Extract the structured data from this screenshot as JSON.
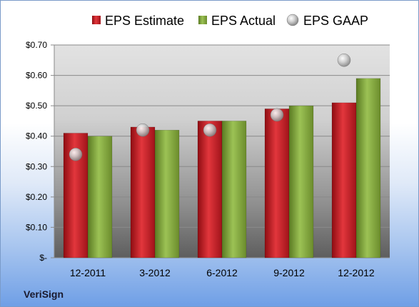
{
  "company": "VeriSign",
  "chart_data": {
    "type": "bar",
    "categories": [
      "12-2011",
      "3-2012",
      "6-2012",
      "9-2012",
      "12-2012"
    ],
    "series": [
      {
        "name": "EPS Estimate",
        "kind": "bar",
        "color": "#c0141c",
        "values": [
          0.41,
          0.43,
          0.45,
          0.49,
          0.51
        ]
      },
      {
        "name": "EPS Actual",
        "kind": "bar",
        "color": "#7fa03a",
        "values": [
          0.4,
          0.42,
          0.45,
          0.5,
          0.59
        ]
      },
      {
        "name": "EPS GAAP",
        "kind": "scatter",
        "color": "#b8b8b8",
        "values": [
          0.34,
          0.42,
          0.42,
          0.47,
          0.65
        ]
      }
    ],
    "yticks": [
      "$-",
      "$0.10",
      "$0.20",
      "$0.30",
      "$0.40",
      "$0.50",
      "$0.60",
      "$0.70"
    ],
    "ylim": [
      0,
      0.7
    ],
    "grid": true,
    "legend_position": "top"
  }
}
